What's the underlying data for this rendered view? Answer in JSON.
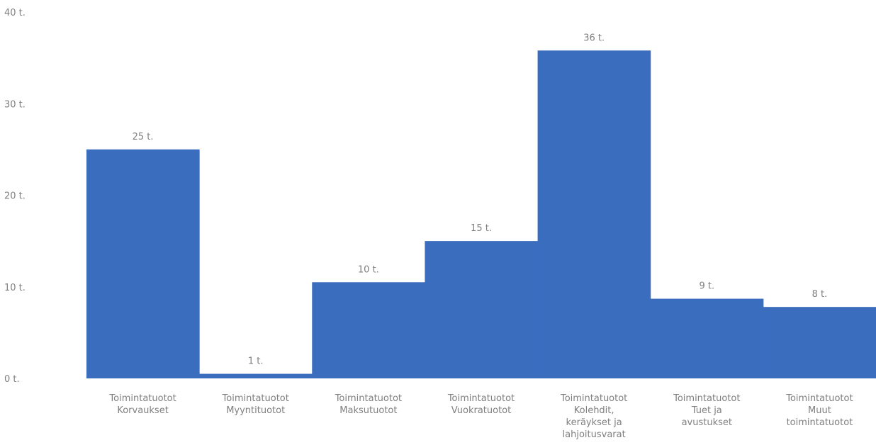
{
  "chart_data": {
    "type": "bar",
    "title": "",
    "xlabel": "",
    "ylabel": "",
    "ylim": [
      0,
      40
    ],
    "yticks": [
      0,
      10,
      20,
      30,
      40
    ],
    "ytick_labels": [
      "0 t.",
      "10 t.",
      "20 t.",
      "30 t.",
      "40 t."
    ],
    "grid": false,
    "legend": "none",
    "bar_color": "#3b6dbf",
    "categories": [
      [
        "Toimintatuotot",
        "Korvaukset"
      ],
      [
        "Toimintatuotot",
        "Myyntituotot"
      ],
      [
        "Toimintatuotot",
        "Maksutuotot"
      ],
      [
        "Toimintatuotot",
        "Vuokratuotot"
      ],
      [
        "Toimintatuotot",
        "Kolehdit,",
        "keräykset ja",
        "lahjoitusvarat"
      ],
      [
        "Toimintatuotot",
        "Tuet ja",
        "avustukset"
      ],
      [
        "Toimintatuotot",
        "Muut",
        "toimintatuotot"
      ]
    ],
    "values": [
      25,
      0.5,
      10.5,
      15,
      35.8,
      8.7,
      7.8
    ],
    "value_labels": [
      "25 t.",
      "1 t.",
      "10 t.",
      "15 t.",
      "36 t.",
      "9 t.",
      "8 t."
    ]
  }
}
